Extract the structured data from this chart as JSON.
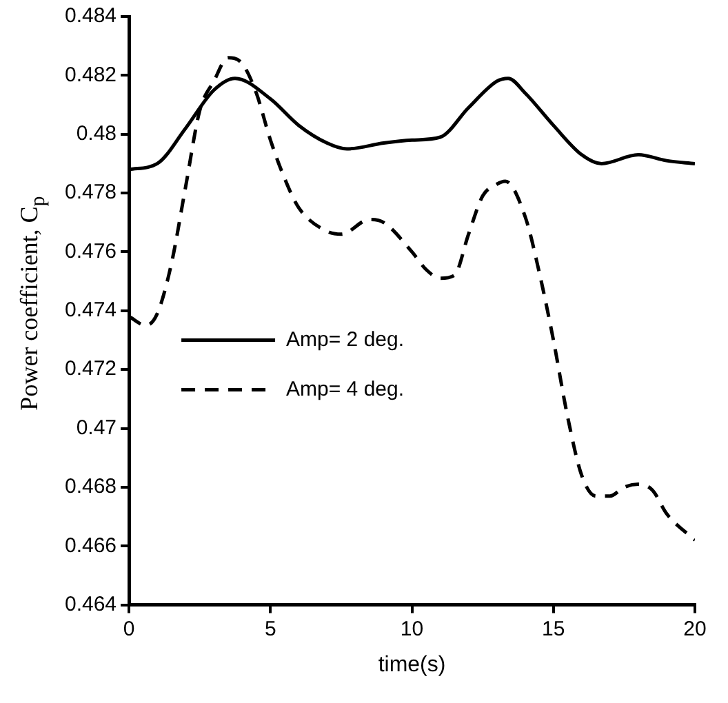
{
  "chart_data": {
    "type": "line",
    "xlabel": "time(s)",
    "ylabel": "Power coefficient, C$_{p}$",
    "xlim": [
      0,
      20
    ],
    "xticks": [
      0,
      5,
      10,
      15,
      20
    ],
    "ylim": [
      0.464,
      0.484
    ],
    "yticks": [
      0.464,
      0.466,
      0.468,
      0.47,
      0.472,
      0.474,
      0.476,
      0.478,
      0.48,
      0.482,
      0.484
    ],
    "grid": false,
    "legend": "left",
    "marker": "none",
    "series": [
      {
        "name": "Amp= 2 deg.",
        "color": "#000000",
        "line_style": "solid",
        "x": [
          0,
          1,
          2,
          3,
          3.75,
          5,
          6,
          7,
          7.7,
          9,
          10,
          11,
          12,
          13,
          13.4,
          14,
          15,
          16,
          16.7,
          18,
          19,
          20
        ],
        "values": [
          0.4788,
          0.479,
          0.4802,
          0.4815,
          0.4819,
          0.4812,
          0.4803,
          0.4797,
          0.4795,
          0.4797,
          0.4798,
          0.4799,
          0.4809,
          0.4818,
          0.4819,
          0.4814,
          0.4803,
          0.4793,
          0.479,
          0.4793,
          0.4791,
          0.479
        ]
      },
      {
        "name": "Amp= 4 deg.",
        "color": "#000000",
        "line_style": "dashed",
        "x": [
          0,
          0.6,
          1,
          1.5,
          2,
          2.5,
          3,
          3.5,
          4,
          4.5,
          5,
          5.5,
          6,
          7,
          7.5,
          8.5,
          9,
          10,
          10.5,
          11,
          11.5,
          12,
          12.5,
          13,
          13.3,
          14,
          14.5,
          15,
          15.5,
          16,
          16.5,
          17,
          17.5,
          18,
          18.5,
          19,
          20
        ],
        "values": [
          0.4738,
          0.4735,
          0.4739,
          0.4756,
          0.4782,
          0.4808,
          0.4818,
          0.4826,
          0.4824,
          0.4814,
          0.4798,
          0.4785,
          0.4775,
          0.4767,
          0.4766,
          0.4771,
          0.477,
          0.476,
          0.4754,
          0.4751,
          0.4752,
          0.4766,
          0.4779,
          0.4783,
          0.4784,
          0.4772,
          0.4753,
          0.473,
          0.4704,
          0.4684,
          0.4677,
          0.4677,
          0.468,
          0.4681,
          0.4679,
          0.4671,
          0.4662
        ]
      }
    ]
  }
}
